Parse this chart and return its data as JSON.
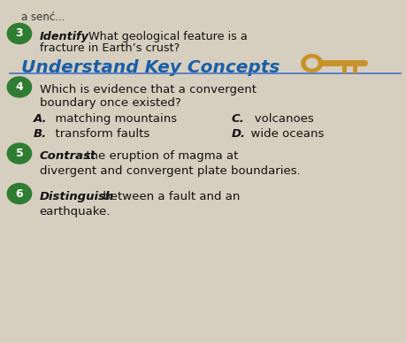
{
  "bg_color": "#d6cfc0",
  "header_color": "#1a5fa8",
  "circle_color": "#2e7d32",
  "body_text_color": "#111111",
  "line_color": "#4472c4",
  "key_color": "#c8922a",
  "top_snippet": "a senć...",
  "item3_bold": "Identify",
  "item3_normal": " What geological feature is a",
  "item3_line2": "fracture in Earth’s crust?",
  "header_text": "Understand Key Concepts",
  "item4_line1": "Which is evidence that a convergent",
  "item4_line2": "boundary once existed?",
  "ans_a_bold": "A.",
  "ans_a": "  matching mountains",
  "ans_c_bold": "C.",
  "ans_c": "   volcanoes",
  "ans_b_bold": "B.",
  "ans_b": "  transform faults",
  "ans_d_bold": "D.",
  "ans_d": "  wide oceans",
  "item5_bold": "Contrast",
  "item5_normal": " the eruption of magma at",
  "item5_line2": "divergent and convergent plate boundaries.",
  "item6_bold": "Distinguish",
  "item6_normal": " between a fault and an",
  "item6_line2": "earthquake."
}
